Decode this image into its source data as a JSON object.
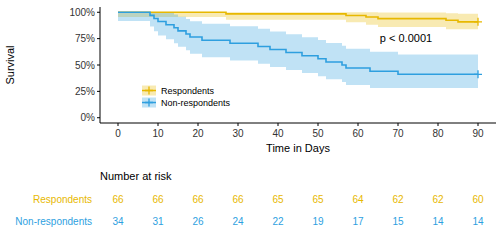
{
  "chart_data": {
    "type": "step",
    "x_label": "Time in Days",
    "y_label": "Survival",
    "xlim": [
      -4.5,
      94.5
    ],
    "xticks": [
      0,
      10,
      20,
      30,
      40,
      50,
      60,
      70,
      80,
      90
    ],
    "ylim": [
      -5,
      105
    ],
    "yticks": [
      {
        "value": 0,
        "label": "0%"
      },
      {
        "value": 25,
        "label": "25%"
      },
      {
        "value": 50,
        "label": "50%"
      },
      {
        "value": 75,
        "label": "75%"
      },
      {
        "value": 100,
        "label": "100%"
      }
    ],
    "grid": false,
    "legend": "left",
    "marker": "plus",
    "annotations": [
      "p < 0.0001"
    ],
    "at_risk_title": "Number at risk",
    "at_risk_times": [
      0,
      10,
      20,
      30,
      40,
      50,
      60,
      70,
      80,
      90
    ],
    "series": [
      {
        "name": "Respondents",
        "color": "#E7B800",
        "x": [
          0,
          27,
          57,
          62,
          65,
          82,
          85,
          90
        ],
        "values": [
          100,
          98.5,
          97,
          95.5,
          94,
          92.4,
          90.9,
          90.9
        ],
        "lower": [
          100,
          95.6,
          93,
          90.5,
          88.2,
          86,
          83.8,
          83.8
        ],
        "upper": [
          100,
          100,
          100,
          100,
          99.8,
          99.1,
          98.5,
          98.5
        ],
        "at_risk": [
          66,
          66,
          66,
          66,
          65,
          65,
          64,
          62,
          62,
          60
        ]
      },
      {
        "name": "Non-respondents",
        "color": "#2E9FDF",
        "x": [
          0,
          8,
          9,
          10,
          12,
          14,
          15,
          17,
          18,
          21,
          28,
          35,
          38,
          42,
          46,
          50,
          52,
          56,
          57,
          63,
          70,
          90
        ],
        "values": [
          100,
          97.1,
          94.1,
          91.2,
          88.2,
          85.3,
          82.4,
          79.4,
          76.5,
          73.5,
          70.6,
          67.6,
          64.7,
          61.8,
          58.8,
          55.9,
          52.9,
          50,
          47.1,
          44.1,
          41.2,
          41.2
        ],
        "lower": [
          100,
          91.8,
          86.5,
          82.1,
          78,
          74.3,
          70.7,
          67.2,
          63.9,
          60.6,
          57.4,
          54.3,
          51.2,
          48.2,
          45.2,
          42.3,
          39.4,
          36.6,
          33.8,
          31,
          28.3,
          28.3
        ],
        "upper": [
          100,
          100,
          100,
          100,
          99.6,
          97.8,
          95.8,
          93.7,
          91.5,
          89.2,
          86.8,
          84.3,
          81.7,
          79.1,
          76.4,
          73.7,
          70.9,
          68.2,
          65.4,
          62.6,
          59.9,
          59.9
        ],
        "at_risk": [
          34,
          31,
          26,
          24,
          22,
          19,
          17,
          15,
          14,
          14
        ]
      }
    ]
  }
}
